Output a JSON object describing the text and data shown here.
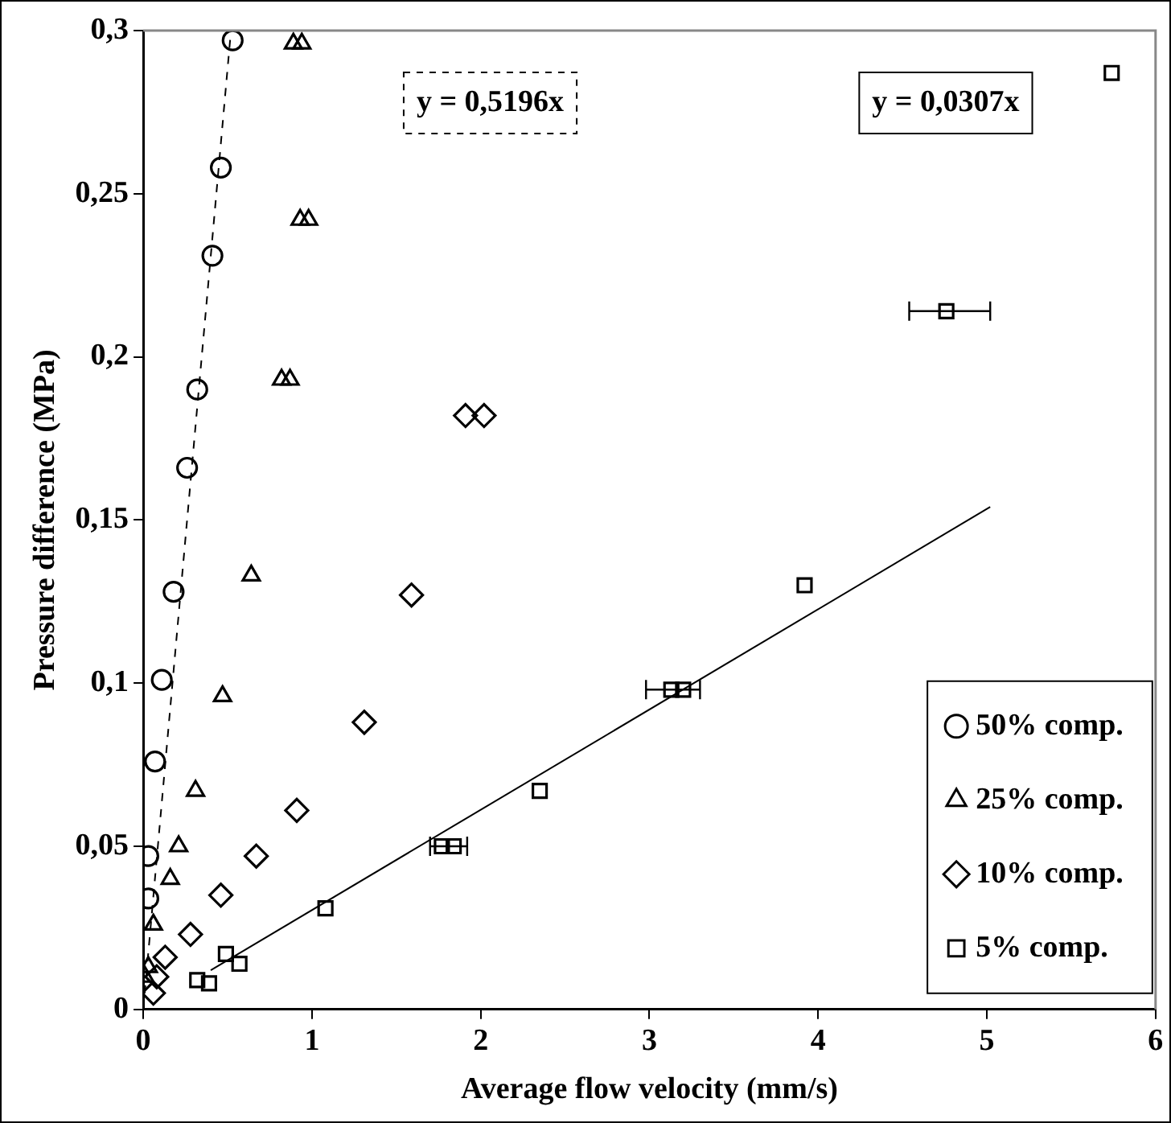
{
  "chart_data": {
    "type": "scatter",
    "xlabel": "Average flow velocity (mm/s)",
    "ylabel": "Pressure difference (MPa)",
    "xlim": [
      0,
      6
    ],
    "xticks": [
      0,
      1,
      2,
      3,
      4,
      5,
      6
    ],
    "ylim": [
      0,
      0.3
    ],
    "yticks": [
      0,
      {
        "value": 0.05,
        "label": "0,05"
      },
      {
        "value": 0.1,
        "label": "0,1"
      },
      {
        "value": 0.15,
        "label": "0,15"
      },
      {
        "value": 0.2,
        "label": "0,2"
      },
      {
        "value": 0.25,
        "label": "0,25"
      },
      {
        "value": 0.3,
        "label": "0,3"
      }
    ],
    "grid": false,
    "legend": "bottom right",
    "series": [
      {
        "name": "50% comp.",
        "color": "#000000",
        "marker": "circle",
        "x": [
          0.53,
          0.46,
          0.41,
          0.32,
          0.26,
          0.18,
          0.11,
          0.07,
          0.03,
          0.03
        ],
        "values": [
          0.297,
          0.258,
          0.231,
          0.19,
          0.166,
          0.128,
          0.101,
          0.076,
          0.047,
          0.034
        ]
      },
      {
        "name": "25% comp.",
        "color": "#000000",
        "marker": "triangle",
        "x": [
          0.89,
          0.94,
          0.93,
          0.98,
          0.82,
          0.87,
          0.64,
          0.47,
          0.31,
          0.21,
          0.16,
          0.06,
          0.03,
          0.01
        ],
        "values": [
          0.296,
          0.296,
          0.242,
          0.242,
          0.193,
          0.193,
          0.133,
          0.096,
          0.067,
          0.05,
          0.04,
          0.026,
          0.013,
          0.01
        ]
      },
      {
        "name": "10% comp.",
        "color": "#000000",
        "marker": "diamond",
        "x": [
          1.91,
          2.02,
          1.59,
          1.31,
          0.91,
          0.67,
          0.46,
          0.28,
          0.13,
          0.08,
          0.06
        ],
        "values": [
          0.182,
          0.182,
          0.127,
          0.088,
          0.061,
          0.047,
          0.035,
          0.023,
          0.016,
          0.01,
          0.005
        ]
      },
      {
        "name": "5% comp.",
        "color": "#000000",
        "marker": "square",
        "x": [
          0.32,
          0.39,
          0.49,
          0.57,
          1.08,
          1.77,
          1.84,
          2.35,
          3.13,
          3.2,
          3.92,
          4.76,
          5.74
        ],
        "values": [
          0.009,
          0.008,
          0.017,
          0.014,
          0.031,
          0.05,
          0.05,
          0.067,
          0.098,
          0.098,
          0.13,
          0.214,
          0.287
        ],
        "xerrors": [
          null,
          null,
          null,
          null,
          null,
          [
            1.7,
            1.92
          ],
          null,
          null,
          [
            2.98,
            3.3
          ],
          null,
          null,
          [
            4.54,
            5.02
          ],
          null
        ]
      },
      {
        "type": "line",
        "color": "#000000",
        "line_style": "dashed",
        "marker": "none",
        "x": [
          0,
          0.52
        ],
        "values": [
          0,
          0.3
        ]
      },
      {
        "type": "line",
        "color": "#000000",
        "line_style": "solid",
        "marker": "none",
        "x": [
          0.4,
          5.02
        ],
        "values": [
          0.012,
          0.154
        ]
      }
    ],
    "annotations": [
      "y = 0,5196x",
      "y = 0,0307x"
    ]
  }
}
